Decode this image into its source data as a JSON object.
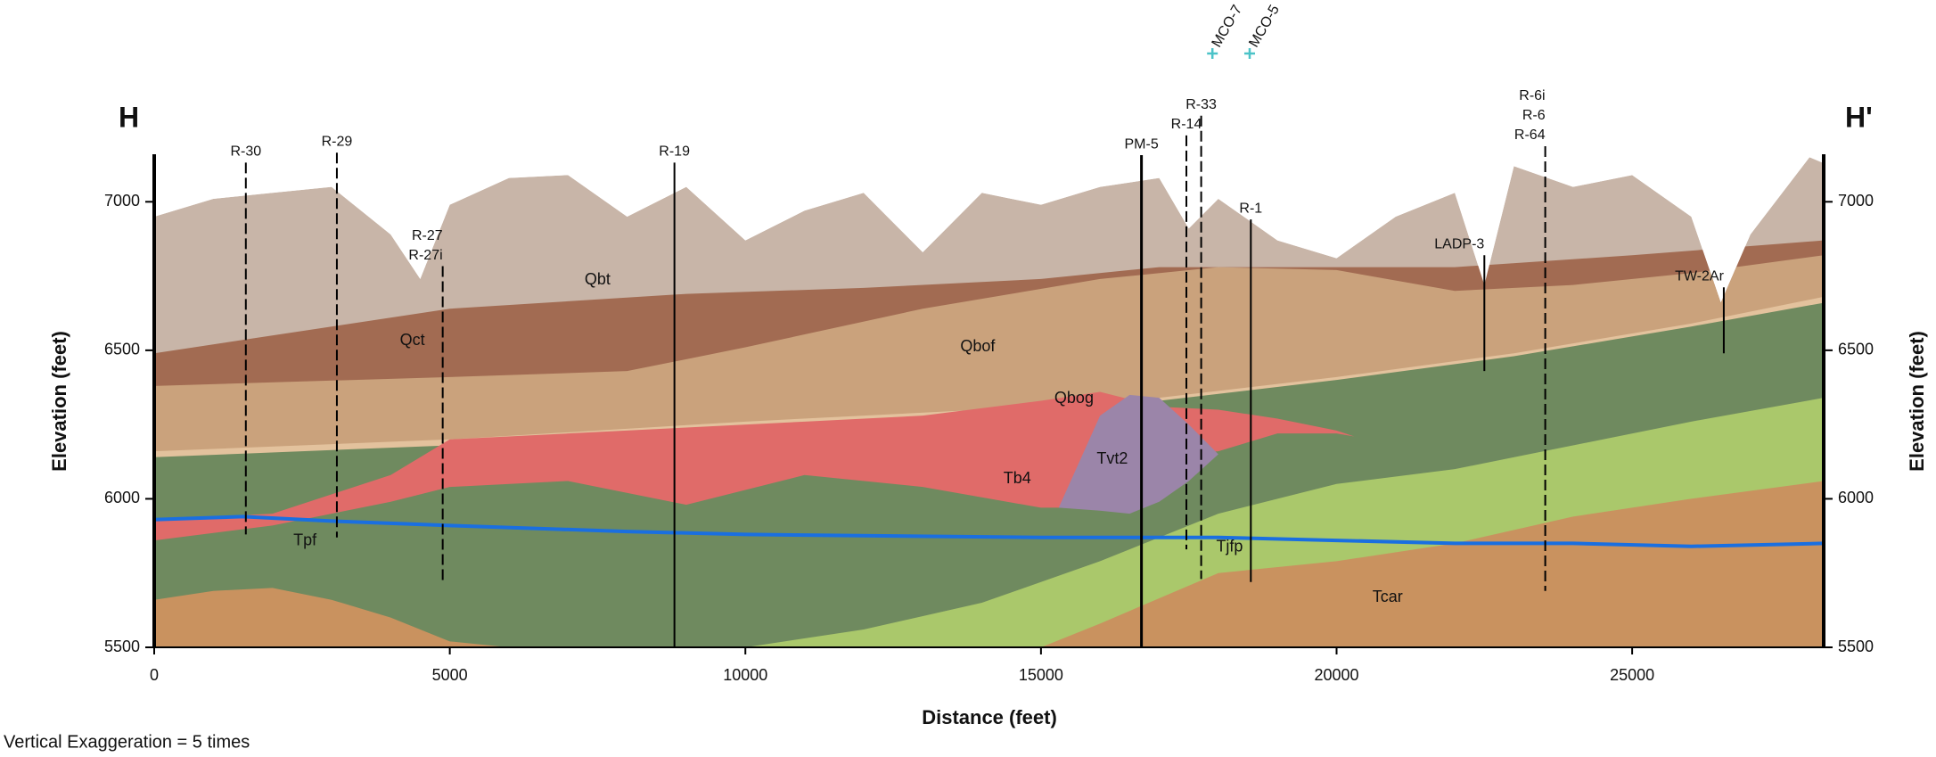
{
  "chart_data": {
    "type": "area",
    "left_label": "H",
    "right_label": "H'",
    "x_label": "Distance (feet)",
    "y_label": "Elevation (feet)",
    "y2_label": "Elevation (feet)",
    "note": "Vertical Exaggeration = 5 times",
    "xlim": [
      0,
      28240
    ],
    "ylim": [
      5500,
      7160
    ],
    "xticks": [
      0,
      5000,
      10000,
      15000,
      20000,
      25000
    ],
    "yticks": [
      5500,
      6000,
      6500,
      7000
    ],
    "series": [
      {
        "name": "Qbt",
        "color": "#c8b5a8",
        "x": [
          0,
          1000,
          2000,
          3000,
          4000,
          4500,
          5000,
          6000,
          7000,
          8000,
          9000,
          10000,
          11000,
          12000,
          13000,
          14000,
          15000,
          16000,
          17000,
          17500,
          18000,
          19000,
          20000,
          21000,
          22000,
          22500,
          23000,
          24000,
          25000,
          26000,
          26500,
          27000,
          28000,
          28240
        ],
        "values": [
          6950,
          7010,
          7030,
          7050,
          6890,
          6740,
          6990,
          7080,
          7090,
          6950,
          7050,
          6870,
          6970,
          7030,
          6830,
          7030,
          6990,
          7050,
          7080,
          6910,
          7010,
          6870,
          6810,
          6950,
          7030,
          6720,
          7120,
          7050,
          7090,
          6950,
          6660,
          6890,
          7150,
          7130
        ]
      },
      {
        "name": "Qct",
        "color": "#a26b52",
        "x": [
          0,
          5000,
          9000,
          12000,
          15000,
          17000,
          22000,
          25000,
          28240
        ],
        "values": [
          6490,
          6640,
          6690,
          6710,
          6740,
          6780,
          6780,
          6820,
          6870
        ]
      },
      {
        "name": "Qbof",
        "color": "#caa27c",
        "x": [
          0,
          5000,
          8000,
          10000,
          13000,
          16000,
          18000,
          20000,
          22000,
          24000,
          26000,
          28240
        ],
        "values": [
          6380,
          6410,
          6430,
          6510,
          6640,
          6740,
          6780,
          6770,
          6700,
          6720,
          6760,
          6820
        ]
      },
      {
        "name": "Qbog",
        "color": "#e3c29d",
        "x": [
          0,
          5000,
          10000,
          15000,
          17000,
          20000,
          23000,
          26000,
          28240
        ],
        "values": [
          6160,
          6200,
          6260,
          6310,
          6340,
          6410,
          6490,
          6590,
          6680
        ]
      },
      {
        "name": "Tpf",
        "color": "#6f8a5f",
        "x": [
          0,
          5000,
          10000,
          15000,
          17000,
          20000,
          23000,
          26000,
          28240
        ],
        "values": [
          6140,
          6180,
          6240,
          6290,
          6330,
          6400,
          6480,
          6580,
          6660
        ]
      },
      {
        "name": "Tb4",
        "color": "#e06b69",
        "x": [
          0,
          2000,
          4000,
          5000,
          7000,
          9000,
          11000,
          13000,
          15000,
          16000,
          17000,
          18000,
          19000,
          20000,
          20300
        ],
        "values": [
          5930,
          5950,
          6080,
          6200,
          6220,
          6240,
          6260,
          6280,
          6330,
          6360,
          6310,
          6300,
          6270,
          6230,
          6210
        ],
        "bottom": [
          5860,
          5910,
          5990,
          6040,
          6060,
          5980,
          6080,
          6040,
          5970,
          5970,
          6150,
          6160,
          6220,
          6220,
          6210
        ]
      },
      {
        "name": "Tvt2",
        "color": "#9b85a9",
        "x": [
          15300,
          16000,
          16500,
          17000,
          17500,
          18000
        ],
        "values": [
          5970,
          6280,
          6350,
          6340,
          6250,
          6150
        ],
        "bottom": [
          5970,
          5960,
          5950,
          5990,
          6060,
          6150
        ]
      },
      {
        "name": "Tjfp",
        "color": "#aac86b",
        "x": [
          0,
          8000,
          10000,
          12000,
          14000,
          16000,
          18000,
          20000,
          22000,
          24000,
          26000,
          28240
        ],
        "values": [
          5500,
          5500,
          5500,
          5560,
          5650,
          5790,
          5950,
          6050,
          6100,
          6180,
          6260,
          6340
        ]
      },
      {
        "name": "Tcar",
        "color": "#c9925f",
        "x": [
          0,
          1000,
          2000,
          3000,
          4000,
          5000,
          6000,
          15000,
          16000,
          18000,
          20000,
          22000,
          24000,
          26000,
          28240
        ],
        "values": [
          5660,
          5690,
          5700,
          5660,
          5600,
          5520,
          5500,
          5500,
          5580,
          5750,
          5790,
          5850,
          5940,
          6000,
          6060
        ]
      },
      {
        "type": "line",
        "color": "#1a6fe0",
        "x": [
          0,
          1500,
          3000,
          5000,
          8000,
          10000,
          15000,
          18000,
          20000,
          22000,
          24000,
          26000,
          28240
        ],
        "values": [
          5930,
          5940,
          5925,
          5910,
          5890,
          5880,
          5870,
          5870,
          5860,
          5850,
          5850,
          5840,
          5850
        ]
      }
    ],
    "wells": [
      {
        "labels": [
          "R-30"
        ],
        "x": 1550,
        "bottom": 5880,
        "dashed": true
      },
      {
        "labels": [
          "R-29"
        ],
        "x": 3090,
        "bottom": 5870,
        "dashed": true
      },
      {
        "labels": [
          "R-27",
          "R-27i"
        ],
        "x": 4880,
        "bottom": 5720,
        "dashed": true
      },
      {
        "labels": [
          "R-19"
        ],
        "x": 8800,
        "bottom": 5500,
        "dashed": false
      },
      {
        "labels": [
          "PM-5"
        ],
        "x": 16700,
        "bottom": 5500,
        "dashed": false
      },
      {
        "labels": [
          "R-14"
        ],
        "x": 17460,
        "bottom": 5830,
        "dashed": true
      },
      {
        "labels": [
          "R-33"
        ],
        "x": 17710,
        "bottom": 5730,
        "dashed": true
      },
      {
        "labels": [
          "MCO-7"
        ],
        "x": 17900
      },
      {
        "labels": [
          "MCO-5"
        ],
        "x": 18530
      },
      {
        "labels": [
          "R-1"
        ],
        "x": 18550,
        "bottom": 5720,
        "dashed": false
      },
      {
        "labels": [
          "LADP-3"
        ],
        "x": 22500,
        "bottom": 6430,
        "dashed": false
      },
      {
        "labels": [
          "R-6i",
          "R-6",
          "R-64"
        ],
        "x": 23530,
        "bottom": 5690,
        "dashed": true
      },
      {
        "labels": [
          "TW-2Ar"
        ],
        "x": 26550,
        "bottom": 6490,
        "dashed": false
      }
    ]
  }
}
